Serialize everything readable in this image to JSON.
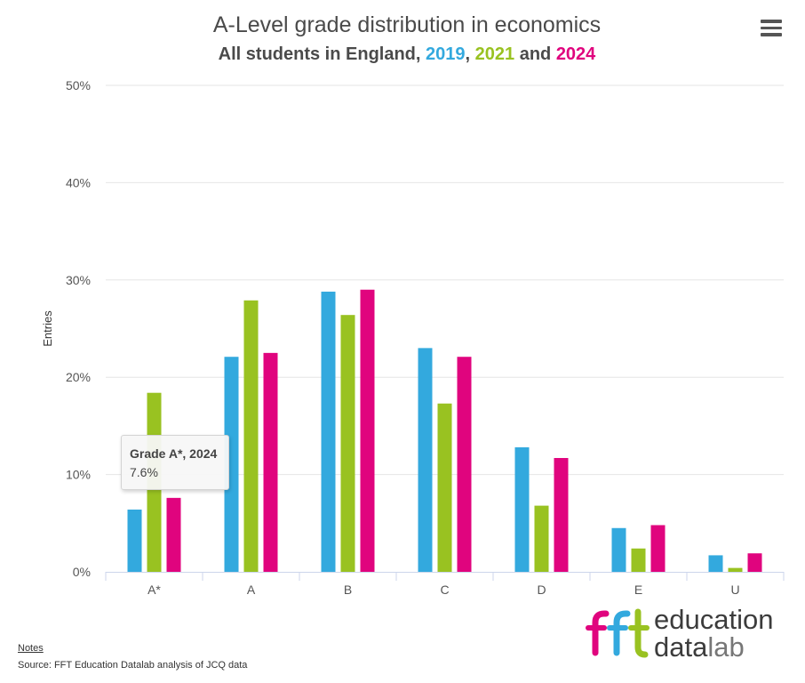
{
  "header": {
    "title": "A-Level grade distribution in economics",
    "subtitle_prefix": "All students in England, ",
    "subtitle_y2019": "2019",
    "subtitle_sep": ", ",
    "subtitle_y2021": "2021",
    "subtitle_and": " and ",
    "subtitle_y2024": "2024"
  },
  "tooltip": {
    "line1": "Grade A*, 2024",
    "line2": "7.6%"
  },
  "logo": {
    "mark": "fft",
    "line1": "education",
    "line2_a": "data",
    "line2_b": "lab"
  },
  "footer": {
    "notes": "Notes",
    "source": "Source: FFT Education Datalab analysis of JCQ data"
  },
  "colors": {
    "y2019": "#33a9de",
    "y2021": "#99c221",
    "y2024": "#e0047e",
    "text": "#4a4a4a",
    "grid": "#e6e6e6"
  },
  "icons": {
    "menu": "hamburger-menu-icon"
  },
  "chart_data": {
    "type": "bar",
    "title": "A-Level grade distribution in economics",
    "subtitle": "All students in England, 2019, 2021 and 2024",
    "ylabel": "Entries",
    "xlabel": "",
    "ylim": [
      0,
      50
    ],
    "yticks": [
      "0%",
      "10%",
      "20%",
      "30%",
      "40%",
      "50%"
    ],
    "grid": true,
    "legend": "in subtitle",
    "categories": [
      "A*",
      "A",
      "B",
      "C",
      "D",
      "E",
      "U"
    ],
    "series": [
      {
        "name": "2019",
        "color": "#33a9de",
        "values": [
          6.4,
          22.1,
          28.8,
          23.0,
          12.8,
          4.5,
          1.7
        ]
      },
      {
        "name": "2021",
        "color": "#99c221",
        "values": [
          18.4,
          27.9,
          26.4,
          17.3,
          6.8,
          2.4,
          0.4
        ]
      },
      {
        "name": "2024",
        "color": "#e0047e",
        "values": [
          7.6,
          22.5,
          29.0,
          22.1,
          11.7,
          4.8,
          1.9
        ]
      }
    ]
  }
}
